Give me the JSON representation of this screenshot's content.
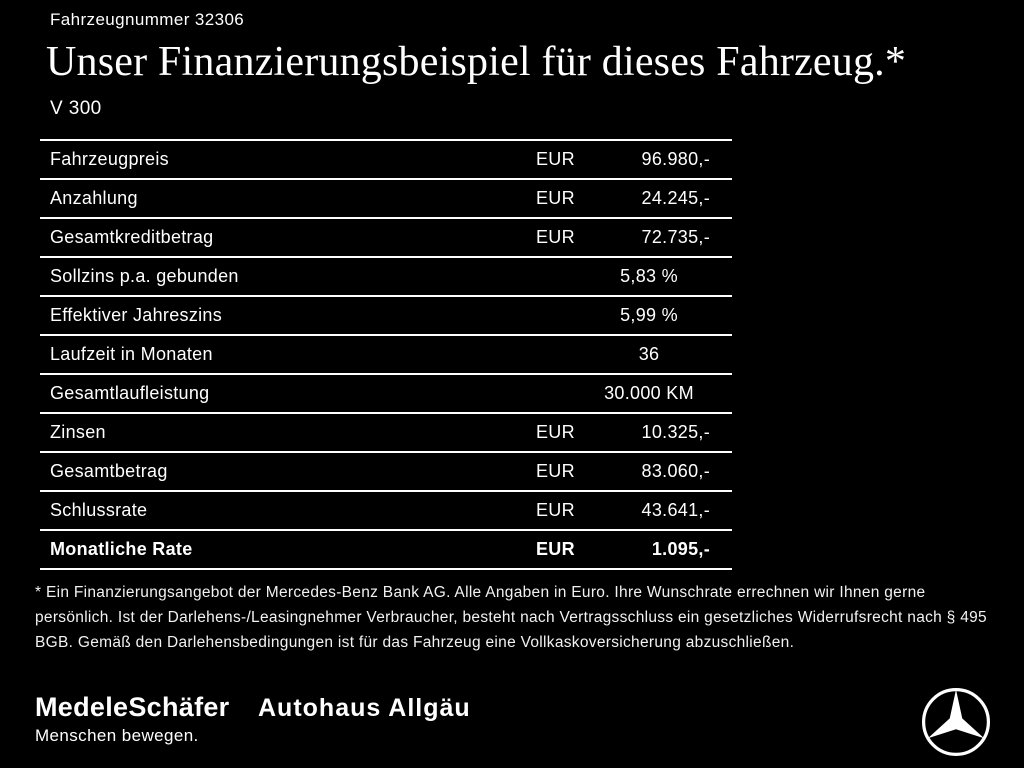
{
  "header": {
    "vehicle_number": "Fahrzeugnummer 32306",
    "title": "Unser Finanzierungsbeispiel für dieses Fahrzeug.*",
    "model": "V 300"
  },
  "table": {
    "rows": [
      {
        "label": "Fahrzeugpreis",
        "currency": "EUR",
        "value": "96.980,-",
        "bold": false
      },
      {
        "label": "Anzahlung",
        "currency": "EUR",
        "value": "24.245,-",
        "bold": false
      },
      {
        "label": "Gesamtkreditbetrag",
        "currency": "EUR",
        "value": "72.735,-",
        "bold": false
      },
      {
        "label": "Sollzins p.a. gebunden",
        "currency": "",
        "value": "5,83 %",
        "bold": false
      },
      {
        "label": "Effektiver Jahreszins",
        "currency": "",
        "value": "5,99 %",
        "bold": false
      },
      {
        "label": "Laufzeit in Monaten",
        "currency": "",
        "value": "36",
        "bold": false
      },
      {
        "label": "Gesamtlaufleistung",
        "currency": "",
        "value": "30.000 KM",
        "bold": false
      },
      {
        "label": "Zinsen",
        "currency": "EUR",
        "value": "10.325,-",
        "bold": false
      },
      {
        "label": "Gesamtbetrag",
        "currency": "EUR",
        "value": "83.060,-",
        "bold": false
      },
      {
        "label": "Schlussrate",
        "currency": "EUR",
        "value": "43.641,-",
        "bold": false
      },
      {
        "label": "Monatliche Rate",
        "currency": "EUR",
        "value": "1.095,-",
        "bold": true
      }
    ]
  },
  "footnote": {
    "text": "* Ein Finanzierungsangebot der Mercedes-Benz Bank AG. Alle Angaben in Euro. Ihre Wunschrate errechnen wir Ihnen gerne persönlich. Ist der Darlehens-/Leasingnehmer Verbraucher, besteht nach Vertragsschluss ein gesetzliches Widerrufsrecht nach § 495 BGB. Gemäß den Darlehensbedingungen ist für das Fahrzeug eine Vollkaskoversicherung abzuschließen."
  },
  "footer": {
    "dealer1": "MedeleSchäfer",
    "dealer2": "Autohaus Allgäu",
    "tagline": "Menschen bewegen.",
    "brand_icon": "mercedes-star-icon"
  },
  "colors": {
    "background": "#000000",
    "text": "#ffffff"
  }
}
